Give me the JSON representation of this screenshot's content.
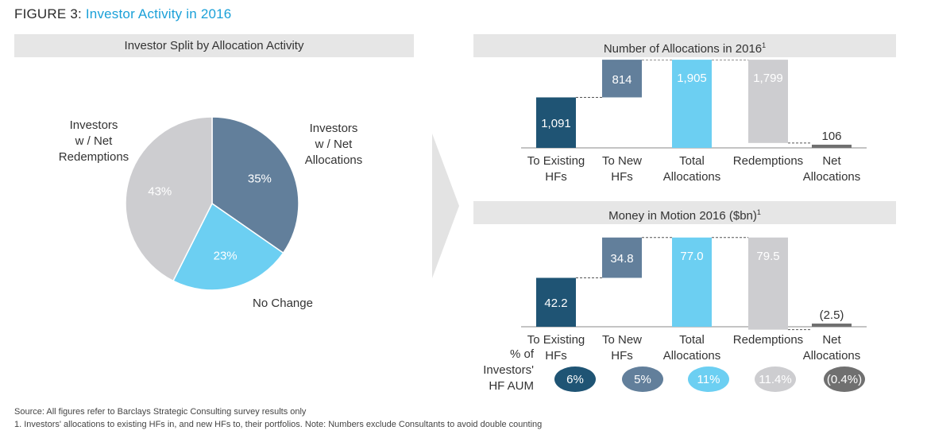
{
  "figure": {
    "label": "FIGURE 3:",
    "title": "Investor Activity in 2016"
  },
  "colors": {
    "dark_blue": "#1f5474",
    "mid_blue": "#627f9b",
    "light_blue": "#6ccff2",
    "light_gray": "#cdcdd0",
    "dark_gray": "#707070",
    "title_blue": "#1aa0d8"
  },
  "panels": {
    "pie": {
      "header": "Investor Split by Allocation Activity"
    },
    "allocations": {
      "header": "Number of Allocations in 2016",
      "footnote_mark": "1"
    },
    "money": {
      "header": "Money in Motion 2016 ($bn)",
      "footnote_mark": "1"
    }
  },
  "aum_row": {
    "label_lines": [
      "% of",
      "Investors'",
      "HF AUM"
    ],
    "values": [
      "6%",
      "5%",
      "11%",
      "11.4%",
      "(0.4%)"
    ]
  },
  "footer": {
    "source": "Source: All figures refer to Barclays Strategic Consulting survey results only",
    "note": "1. Investors' allocations to existing HFs in, and new HFs to, their portfolios.  Note: Numbers exclude Consultants to avoid double counting"
  },
  "chart_data": [
    {
      "type": "pie",
      "title": "Investor Split by Allocation Activity",
      "slices": [
        {
          "label": "Investors w / Net Allocations",
          "label_lines": [
            "Investors",
            "w / Net",
            "Allocations"
          ],
          "value": 35,
          "display": "35%"
        },
        {
          "label": "No Change",
          "label_lines": [
            "No Change"
          ],
          "value": 23,
          "display": "23%"
        },
        {
          "label": "Investors w / Net Redemptions",
          "label_lines": [
            "Investors",
            "w / Net",
            "Redemptions"
          ],
          "value": 43,
          "display": "43%"
        }
      ]
    },
    {
      "type": "bar",
      "subtype": "waterfall",
      "title": "Number of Allocations in 2016",
      "categories": [
        "To Existing HFs",
        "To New HFs",
        "Total Allocations",
        "Redemptions",
        "Net Allocations"
      ],
      "category_lines": [
        [
          "To Existing",
          "HFs"
        ],
        [
          "To New",
          "HFs"
        ],
        [
          "Total",
          "Allocations"
        ],
        [
          "Redemptions"
        ],
        [
          "Net",
          "Allocations"
        ]
      ],
      "values": [
        1091,
        814,
        1905,
        -1799,
        106
      ],
      "labels": [
        "1,091",
        "814",
        "1,905",
        "1,799",
        "106"
      ]
    },
    {
      "type": "bar",
      "subtype": "waterfall",
      "title": "Money in Motion 2016 ($bn)",
      "categories": [
        "To Existing HFs",
        "To New HFs",
        "Total Allocations",
        "Redemptions",
        "Net Allocations"
      ],
      "category_lines": [
        [
          "To Existing",
          "HFs"
        ],
        [
          "To New",
          "HFs"
        ],
        [
          "Total",
          "Allocations"
        ],
        [
          "Redemptions"
        ],
        [
          "Net",
          "Allocations"
        ]
      ],
      "values": [
        42.2,
        34.8,
        77.0,
        -79.5,
        -2.5
      ],
      "labels": [
        "42.2",
        "34.8",
        "77.0",
        "79.5",
        "(2.5)"
      ]
    }
  ]
}
